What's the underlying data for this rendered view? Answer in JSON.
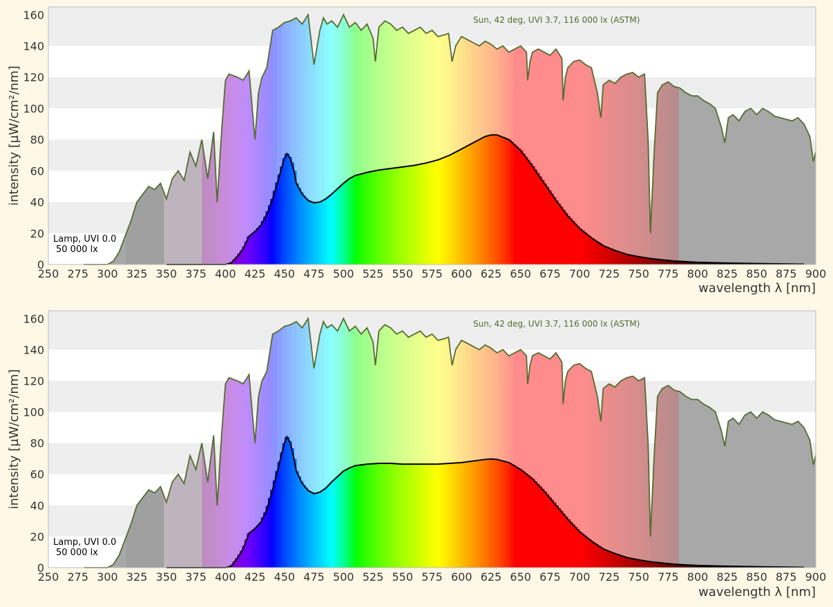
{
  "chart_data": [
    {
      "type": "area",
      "xlabel": "wavelength λ [nm]",
      "ylabel": "intensity [µW/cm²/nm]",
      "xlim": [
        250,
        900
      ],
      "ylim": [
        0,
        165
      ],
      "xticks": [
        250,
        275,
        300,
        325,
        350,
        375,
        400,
        425,
        450,
        475,
        500,
        525,
        550,
        575,
        600,
        625,
        650,
        675,
        700,
        725,
        750,
        775,
        800,
        825,
        850,
        875,
        900
      ],
      "yticks": [
        0,
        20,
        40,
        60,
        80,
        100,
        120,
        140,
        160
      ],
      "grid": "horizontal bands",
      "sun_label": "Sun, 42 deg, UVI 3.7, 116 000 lx (ASTM)",
      "lamp_label_1": "Lamp, UVI 0.0",
      "lamp_label_2": "50 000 lx",
      "series": [
        {
          "name": "Sun, 42 deg, UVI 3.7, 116 000 lx (ASTM)",
          "color": "#556b2f",
          "x": [
            280,
            290,
            300,
            305,
            310,
            315,
            320,
            325,
            330,
            335,
            340,
            345,
            350,
            355,
            360,
            365,
            370,
            375,
            380,
            385,
            390,
            393,
            397,
            400,
            403,
            410,
            415,
            420,
            425,
            428,
            431,
            435,
            440,
            445,
            450,
            455,
            460,
            465,
            470,
            475,
            480,
            483,
            486,
            490,
            495,
            500,
            505,
            510,
            515,
            520,
            525,
            527,
            530,
            535,
            540,
            545,
            550,
            555,
            560,
            565,
            570,
            575,
            580,
            585,
            589,
            592,
            595,
            600,
            605,
            610,
            615,
            620,
            625,
            630,
            635,
            640,
            645,
            650,
            655,
            656,
            658,
            660,
            665,
            670,
            675,
            680,
            685,
            686,
            688,
            690,
            695,
            700,
            705,
            710,
            715,
            718,
            720,
            725,
            730,
            735,
            740,
            745,
            750,
            755,
            758,
            760,
            763,
            766,
            770,
            775,
            780,
            785,
            790,
            795,
            800,
            805,
            810,
            815,
            820,
            823,
            826,
            830,
            835,
            840,
            845,
            850,
            855,
            860,
            865,
            870,
            875,
            880,
            885,
            890,
            895,
            898,
            900
          ],
          "values": [
            0,
            0,
            0,
            2,
            8,
            18,
            28,
            40,
            45,
            50,
            48,
            52,
            42,
            55,
            60,
            54,
            72,
            63,
            80,
            55,
            85,
            40,
            88,
            118,
            122,
            120,
            118,
            124,
            80,
            110,
            120,
            126,
            150,
            152,
            155,
            156,
            158,
            154,
            160,
            128,
            150,
            158,
            154,
            156,
            152,
            160,
            152,
            155,
            150,
            154,
            145,
            130,
            152,
            156,
            154,
            150,
            152,
            148,
            150,
            152,
            148,
            150,
            146,
            147,
            148,
            130,
            140,
            146,
            144,
            142,
            140,
            143,
            141,
            138,
            140,
            136,
            138,
            140,
            136,
            118,
            130,
            136,
            138,
            136,
            134,
            138,
            132,
            105,
            120,
            126,
            130,
            131,
            128,
            126,
            110,
            94,
            115,
            118,
            116,
            120,
            122,
            123,
            120,
            122,
            80,
            20,
            70,
            110,
            115,
            117,
            114,
            113,
            110,
            108,
            108,
            105,
            103,
            100,
            88,
            78,
            94,
            96,
            92,
            98,
            100,
            96,
            100,
            98,
            95,
            94,
            93,
            92,
            94,
            90,
            82,
            66,
            72
          ]
        },
        {
          "name": "Lamp, UVI 0.0",
          "color": "#000000",
          "x": [
            350,
            400,
            405,
            410,
            415,
            420,
            425,
            430,
            435,
            440,
            445,
            450,
            452,
            455,
            458,
            460,
            465,
            470,
            475,
            480,
            485,
            490,
            495,
            500,
            505,
            510,
            520,
            530,
            540,
            550,
            560,
            570,
            580,
            590,
            600,
            610,
            620,
            625,
            630,
            640,
            650,
            660,
            670,
            680,
            690,
            700,
            710,
            720,
            730,
            740,
            750,
            760,
            770,
            780,
            790,
            800,
            820,
            840,
            860,
            880,
            890
          ],
          "values": [
            0,
            0,
            1,
            5,
            10,
            18,
            21,
            25,
            32,
            42,
            55,
            68,
            71,
            68,
            60,
            52,
            45,
            41,
            39.5,
            40,
            42,
            45,
            48.5,
            52,
            55,
            57,
            59,
            60.5,
            61.5,
            62.5,
            63.5,
            65,
            67,
            70,
            74,
            78,
            82,
            83,
            83,
            80,
            73,
            63,
            52,
            41,
            31,
            23,
            17,
            12,
            9,
            6.5,
            5,
            3.8,
            3,
            2.2,
            1.8,
            1.4,
            1,
            0.7,
            0.5,
            0.3,
            0.2
          ]
        }
      ]
    },
    {
      "type": "area",
      "xlabel": "wavelength λ [nm]",
      "ylabel": "intensity [µW/cm²/nm]",
      "xlim": [
        250,
        900
      ],
      "ylim": [
        0,
        165
      ],
      "xticks": [
        250,
        275,
        300,
        325,
        350,
        375,
        400,
        425,
        450,
        475,
        500,
        525,
        550,
        575,
        600,
        625,
        650,
        675,
        700,
        725,
        750,
        775,
        800,
        825,
        850,
        875,
        900
      ],
      "yticks": [
        0,
        20,
        40,
        60,
        80,
        100,
        120,
        140,
        160
      ],
      "grid": "horizontal bands",
      "sun_label": "Sun, 42 deg, UVI 3.7, 116 000 lx (ASTM)",
      "lamp_label_1": "Lamp, UVI 0.0",
      "lamp_label_2": "50 000 lx",
      "series": [
        {
          "name": "Sun, 42 deg, UVI 3.7, 116 000 lx (ASTM)",
          "color": "#556b2f",
          "x": [
            280,
            290,
            300,
            305,
            310,
            315,
            320,
            325,
            330,
            335,
            340,
            345,
            350,
            355,
            360,
            365,
            370,
            375,
            380,
            385,
            390,
            393,
            397,
            400,
            403,
            410,
            415,
            420,
            425,
            428,
            431,
            435,
            440,
            445,
            450,
            455,
            460,
            465,
            470,
            475,
            480,
            483,
            486,
            490,
            495,
            500,
            505,
            510,
            515,
            520,
            525,
            527,
            530,
            535,
            540,
            545,
            550,
            555,
            560,
            565,
            570,
            575,
            580,
            585,
            589,
            592,
            595,
            600,
            605,
            610,
            615,
            620,
            625,
            630,
            635,
            640,
            645,
            650,
            655,
            656,
            658,
            660,
            665,
            670,
            675,
            680,
            685,
            686,
            688,
            690,
            695,
            700,
            705,
            710,
            715,
            718,
            720,
            725,
            730,
            735,
            740,
            745,
            750,
            755,
            758,
            760,
            763,
            766,
            770,
            775,
            780,
            785,
            790,
            795,
            800,
            805,
            810,
            815,
            820,
            823,
            826,
            830,
            835,
            840,
            845,
            850,
            855,
            860,
            865,
            870,
            875,
            880,
            885,
            890,
            895,
            898,
            900
          ],
          "values": [
            0,
            0,
            0,
            2,
            8,
            18,
            28,
            40,
            45,
            50,
            48,
            52,
            42,
            55,
            60,
            54,
            72,
            63,
            80,
            55,
            85,
            40,
            88,
            118,
            122,
            120,
            118,
            124,
            80,
            110,
            120,
            126,
            150,
            152,
            155,
            156,
            158,
            154,
            160,
            128,
            150,
            158,
            154,
            156,
            152,
            160,
            152,
            155,
            150,
            154,
            145,
            130,
            152,
            156,
            154,
            150,
            152,
            148,
            150,
            152,
            148,
            150,
            146,
            147,
            148,
            130,
            140,
            146,
            144,
            142,
            140,
            143,
            141,
            138,
            140,
            136,
            138,
            140,
            136,
            118,
            130,
            136,
            138,
            136,
            134,
            138,
            132,
            105,
            120,
            126,
            130,
            131,
            128,
            126,
            110,
            94,
            115,
            118,
            116,
            120,
            122,
            123,
            120,
            122,
            80,
            20,
            70,
            110,
            115,
            117,
            114,
            113,
            110,
            108,
            108,
            105,
            103,
            100,
            88,
            78,
            94,
            96,
            92,
            98,
            100,
            96,
            100,
            98,
            95,
            94,
            93,
            92,
            94,
            90,
            82,
            66,
            72
          ]
        },
        {
          "name": "Lamp, UVI 0.0",
          "color": "#000000",
          "x": [
            350,
            400,
            405,
            410,
            415,
            420,
            425,
            430,
            435,
            440,
            445,
            450,
            452,
            455,
            458,
            460,
            465,
            470,
            475,
            480,
            485,
            490,
            495,
            500,
            505,
            510,
            520,
            530,
            540,
            550,
            560,
            570,
            580,
            590,
            600,
            610,
            620,
            625,
            630,
            640,
            650,
            660,
            670,
            680,
            690,
            700,
            710,
            720,
            730,
            740,
            750,
            760,
            770,
            780,
            790,
            800,
            820,
            840,
            860,
            880,
            890
          ],
          "values": [
            0,
            0,
            1,
            6,
            12,
            22,
            25,
            29,
            37,
            50,
            65,
            80,
            84,
            80,
            70,
            62,
            54,
            49.5,
            47.5,
            48.5,
            51,
            55,
            58.5,
            62,
            64,
            65.5,
            66.5,
            67,
            67,
            66.5,
            66.5,
            66.5,
            66.5,
            67,
            67.5,
            68.5,
            69.5,
            69.8,
            69.5,
            67.5,
            63,
            57,
            49,
            40,
            31,
            23,
            17,
            12,
            9,
            6.5,
            5,
            3.8,
            3,
            2.2,
            1.8,
            1.4,
            1,
            0.7,
            0.5,
            0.3,
            0.2
          ]
        }
      ]
    }
  ]
}
